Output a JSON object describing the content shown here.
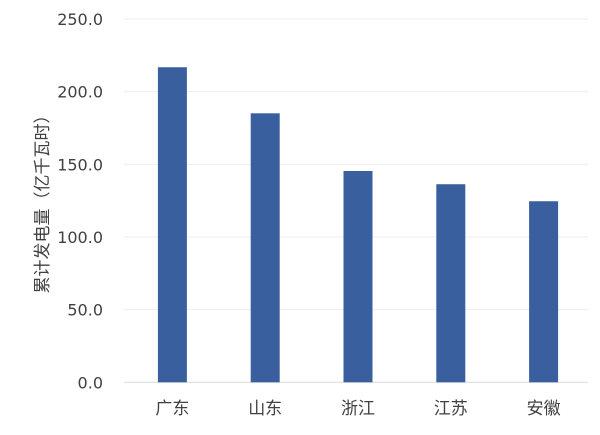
{
  "chart_data": {
    "type": "bar",
    "title": "",
    "xlabel": "",
    "ylabel": "累计发电量（亿千瓦时）",
    "categories": [
      "广东",
      "山东",
      "浙江",
      "江苏",
      "安徽"
    ],
    "values": [
      216.8,
      185.1,
      145.4,
      136.3,
      124.6
    ],
    "ylim": [
      0,
      250
    ],
    "yticks": [
      0,
      50,
      100,
      150,
      200,
      250
    ],
    "ytick_labels": [
      "0.0",
      "50.0",
      "100.0",
      "150.0",
      "200.0",
      "250.0"
    ],
    "grid": true,
    "bar_color": "#3a5f9e",
    "grid_color": "#eeeeee"
  }
}
